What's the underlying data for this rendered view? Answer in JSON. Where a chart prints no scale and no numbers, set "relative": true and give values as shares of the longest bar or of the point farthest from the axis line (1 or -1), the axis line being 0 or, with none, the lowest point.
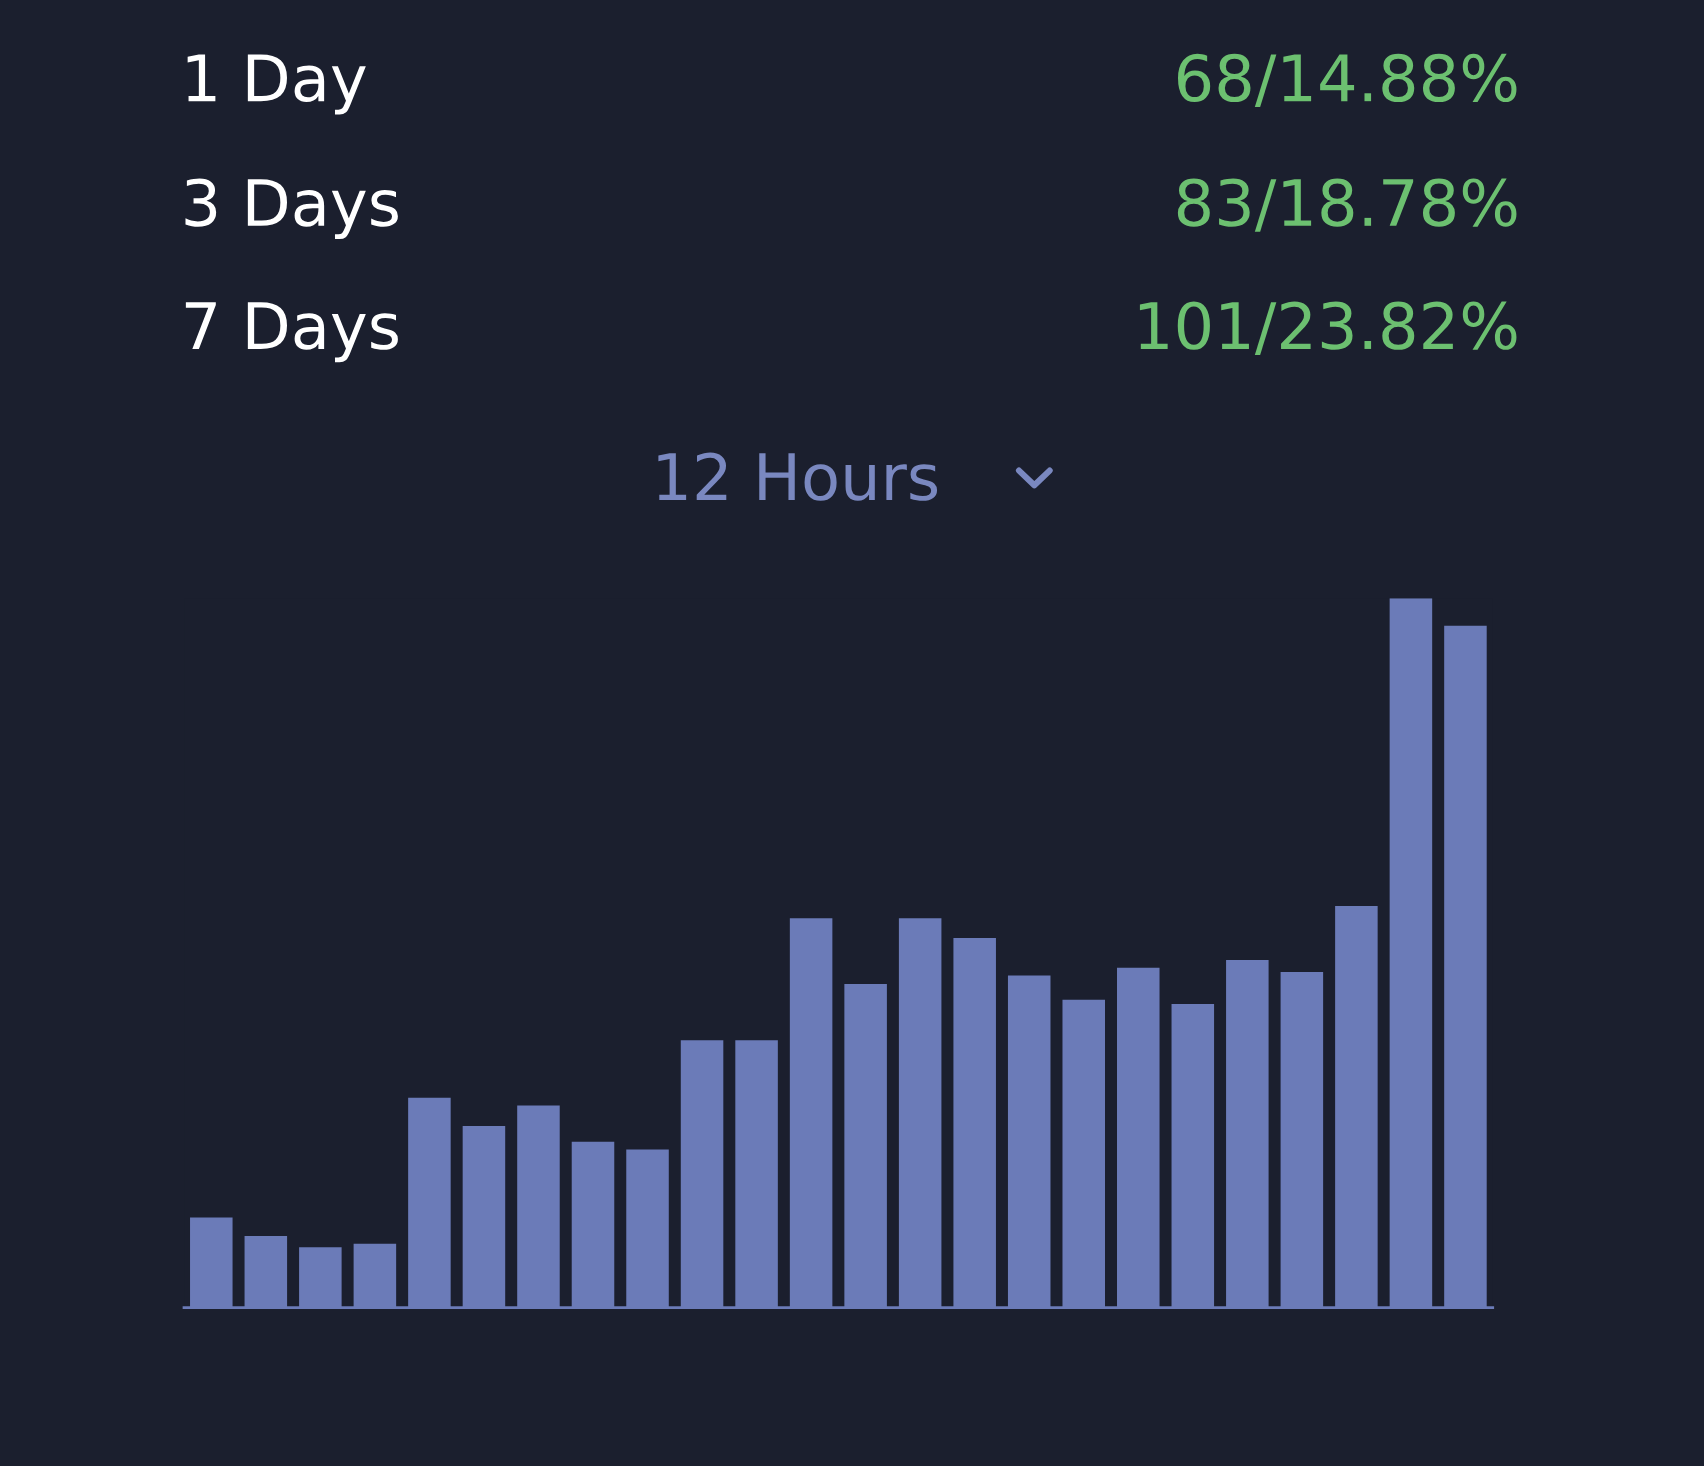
{
  "chart_data": {
    "type": "bar",
    "relative": true,
    "subtitle": "12 Hours",
    "annotations": [
      "1 Day",
      "68/14.88%",
      "3 Days",
      "83/18.78%",
      "7 Days",
      "101/23.82%"
    ],
    "categories": [
      null,
      null,
      null,
      null,
      null,
      null,
      null,
      null,
      null,
      null,
      null,
      null,
      null,
      null,
      null,
      null,
      null,
      null,
      null,
      null,
      null,
      null,
      null,
      null
    ],
    "values": [
      0.127,
      0.101,
      0.085,
      0.09,
      0.296,
      0.256,
      0.285,
      0.234,
      0.223,
      0.377,
      0.377,
      0.549,
      0.456,
      0.549,
      0.521,
      0.468,
      0.434,
      0.479,
      0.428,
      0.49,
      0.473,
      0.566,
      1,
      0.961
    ],
    "color": "#6b7bb8"
  }
}
